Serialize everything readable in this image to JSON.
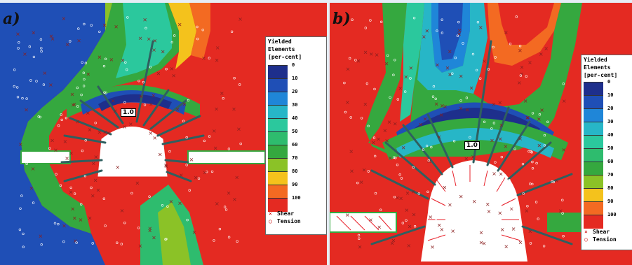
{
  "panels": [
    {
      "label": "a)",
      "factor_label": "1.0"
    },
    {
      "label": "b)",
      "factor_label": "1.0"
    }
  ],
  "legend": {
    "title_line1": "Yielded",
    "title_line2": "Elements",
    "title_line3": "[per-cent]",
    "entries": [
      {
        "value": "0",
        "color": "#1e2f8c"
      },
      {
        "value": "10",
        "color": "#1f4fb6"
      },
      {
        "value": "20",
        "color": "#1f86d8"
      },
      {
        "value": "30",
        "color": "#27b6c7"
      },
      {
        "value": "40",
        "color": "#2bc89d"
      },
      {
        "value": "50",
        "color": "#2ebc6e"
      },
      {
        "value": "60",
        "color": "#35a83f"
      },
      {
        "value": "70",
        "color": "#8bc227"
      },
      {
        "value": "80",
        "color": "#f4c21c"
      },
      {
        "value": "90",
        "color": "#f36a22"
      },
      {
        "value": "100",
        "color": "#e42a22"
      }
    ],
    "markers": [
      {
        "symbol": "×",
        "label": "Shear"
      },
      {
        "symbol": "○",
        "label": "Tension"
      }
    ]
  },
  "colors": {
    "background": "#e42a22",
    "far_field": "#1f4fb6",
    "bolt": "#2f5f5f",
    "tunnel": "#ffffff",
    "tension_arrow": "#e8202a"
  }
}
